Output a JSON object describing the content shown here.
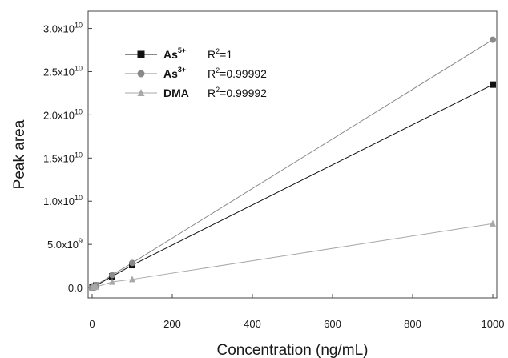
{
  "chart_data": {
    "type": "scatter",
    "xlabel": "Concentration (ng/mL)",
    "ylabel": "Peak area",
    "xlim": [
      -10,
      1010
    ],
    "ylim": [
      -1200000000.0,
      32000000000.0
    ],
    "x_ticks": [
      {
        "value": 0,
        "label": "0"
      },
      {
        "value": 200,
        "label": "200"
      },
      {
        "value": 400,
        "label": "400"
      },
      {
        "value": 600,
        "label": "600"
      },
      {
        "value": 800,
        "label": "800"
      },
      {
        "value": 1000,
        "label": "1000"
      }
    ],
    "y_ticks": [
      {
        "value": 0,
        "mant": "0.0",
        "exp": ""
      },
      {
        "value": 5000000000.0,
        "mant": "5.0x10",
        "exp": "9"
      },
      {
        "value": 10000000000.0,
        "mant": "1.0x10",
        "exp": "10"
      },
      {
        "value": 15000000000.0,
        "mant": "1.5x10",
        "exp": "10"
      },
      {
        "value": 20000000000.0,
        "mant": "2.0x10",
        "exp": "10"
      },
      {
        "value": 25000000000.0,
        "mant": "2.5x10",
        "exp": "10"
      },
      {
        "value": 30000000000.0,
        "mant": "3.0x10",
        "exp": "10"
      }
    ],
    "legend_position": "top-left",
    "grid": false,
    "series": [
      {
        "name": "As",
        "superscript": "5+",
        "r2_label": "R",
        "r2_value": "=1",
        "marker": "square",
        "color": "#111111",
        "x": [
          1,
          5,
          10,
          50,
          100,
          1000
        ],
        "y": [
          24000000.0,
          120000000.0,
          240000000.0,
          1300000000.0,
          2600000000.0,
          23500000000.0
        ]
      },
      {
        "name": "As",
        "superscript": "3+",
        "r2_label": "R",
        "r2_value": "=0.99992",
        "marker": "circle",
        "color": "#8a8a8a",
        "x": [
          1,
          5,
          10,
          50,
          100,
          1000
        ],
        "y": [
          29000000.0,
          145000000.0,
          290000000.0,
          1450000000.0,
          2850000000.0,
          28700000000.0
        ]
      },
      {
        "name": "DMA",
        "superscript": "",
        "r2_label": "R",
        "r2_value": "=0.99992",
        "marker": "triangle",
        "color": "#a8a8a8",
        "x": [
          1,
          5,
          10,
          50,
          100,
          1000
        ],
        "y": [
          7500000.0,
          38000000.0,
          75000000.0,
          650000000.0,
          950000000.0,
          7400000000.0
        ]
      }
    ]
  }
}
